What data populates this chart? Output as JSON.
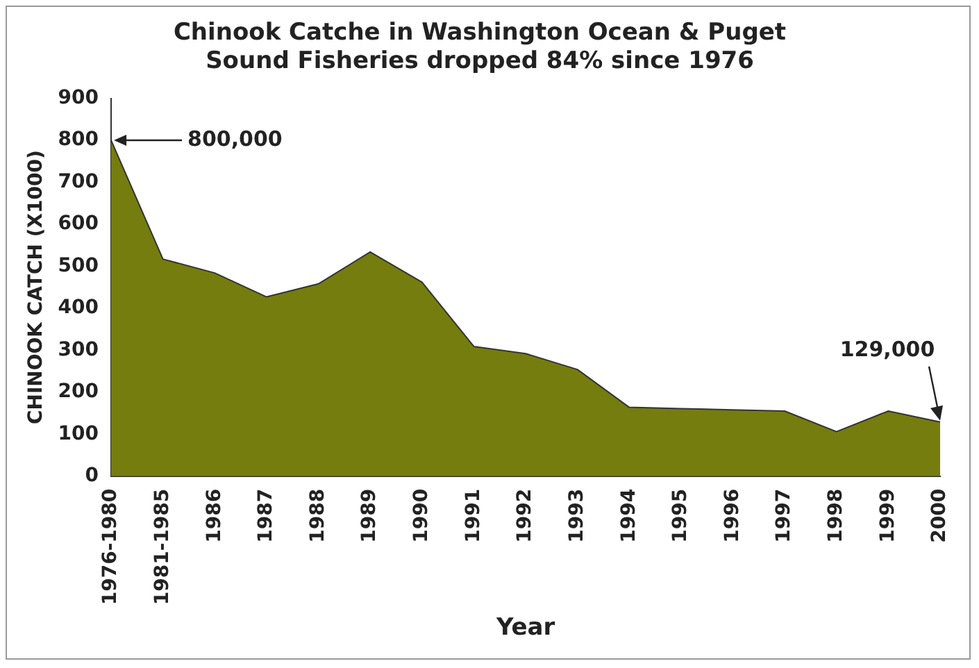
{
  "chart_data": {
    "type": "area",
    "title": "Chinook Catche in Washington Ocean & Puget Sound Fisheries dropped 84% since 1976",
    "xlabel": "Year",
    "ylabel": "CHINOOK CATCH (X1000)",
    "categories": [
      "1976-1980",
      "1981-1985",
      "1986",
      "1987",
      "1988",
      "1989",
      "1990",
      "1991",
      "1992",
      "1993",
      "1994",
      "1995",
      "1996",
      "1997",
      "1998",
      "1999",
      "2000"
    ],
    "values": [
      800,
      517,
      484,
      427,
      458,
      534,
      462,
      309,
      292,
      254,
      164,
      161,
      158,
      155,
      106,
      155,
      129
    ],
    "color": "#757d0f",
    "ylim": [
      0,
      900
    ],
    "yticks": [
      0,
      100,
      200,
      300,
      400,
      500,
      600,
      700,
      800,
      900
    ],
    "grid": false,
    "legend": false,
    "annotations": [
      {
        "text": "800,000",
        "x": "1976-1980",
        "y": 800
      },
      {
        "text": "129,000",
        "x": "2000",
        "y": 129
      }
    ]
  }
}
